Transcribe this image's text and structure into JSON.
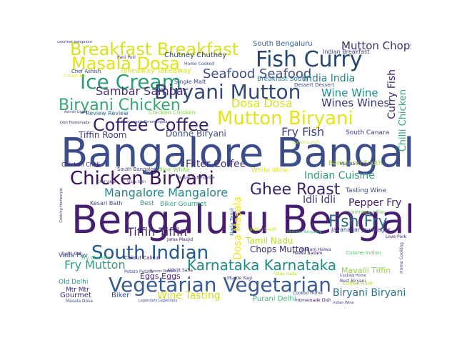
{
  "wordcloud": {
    "words": [
      {
        "text": "Bangalore Bangalore",
        "color": "#3b4d8a",
        "fs": 56
      },
      {
        "text": "Bengaluru Bengaluru",
        "color": "#481f70",
        "fs": 54
      },
      {
        "text": "Breakfast Breakfast",
        "color": "#d6e11f",
        "fs": 24
      },
      {
        "text": "Fish Curry",
        "color": "#26466f",
        "fs": 30
      },
      {
        "text": "Masala Dosa",
        "color": "#e1e116",
        "fs": 24
      },
      {
        "text": "Ice Cream",
        "color": "#2a9d72",
        "fs": 28
      },
      {
        "text": "Biryani Mutton",
        "color": "#30497a",
        "fs": 28
      },
      {
        "text": "Seafood Seafood",
        "color": "#3d4c88",
        "fs": 18
      },
      {
        "text": "Biryani Chicken",
        "color": "#34a770",
        "fs": 22
      },
      {
        "text": "Sambar Sambar",
        "color": "#472e79",
        "fs": 16
      },
      {
        "text": "Mutton Biryani",
        "color": "#e3e419",
        "fs": 26
      },
      {
        "text": "Coffee Coffee",
        "color": "#38216c",
        "fs": 24
      },
      {
        "text": "Chicken Biryani",
        "color": "#3c0f58",
        "fs": 26
      },
      {
        "text": "South Indian",
        "color": "#22578c",
        "fs": 26
      },
      {
        "text": "Karnataka Karnataka",
        "color": "#1f8b85",
        "fs": 20
      },
      {
        "text": "Vegetarian Vegetarian",
        "color": "#385b93",
        "fs": 28
      },
      {
        "text": "Fish Fry",
        "color": "#2e6c8c",
        "fs": 22
      },
      {
        "text": "Ghee Roast",
        "color": "#39256d",
        "fs": 22
      },
      {
        "text": "Mutton Chops",
        "color": "#39336b",
        "fs": 15
      },
      {
        "text": "India India",
        "color": "#2b7f89",
        "fs": 14
      },
      {
        "text": "Wine Wine",
        "color": "#1e8c8a",
        "fs": 15
      },
      {
        "text": "Wines Wines",
        "color": "#35387c",
        "fs": 15
      },
      {
        "text": "Dosa Dosa",
        "color": "#d2e01e",
        "fs": 16
      },
      {
        "text": "Fry Fish",
        "color": "#3e3f7f",
        "fs": 16
      },
      {
        "text": "Mangalore Mangalore",
        "color": "#25858a",
        "fs": 16
      },
      {
        "text": "Tiffin Tiffin",
        "color": "#472a76",
        "fs": 16
      },
      {
        "text": "Fry Mutton",
        "color": "#2f9a7e",
        "fs": 16
      },
      {
        "text": "Filter Coffee",
        "color": "#462f7a",
        "fs": 14
      },
      {
        "text": "Indian Cuisine",
        "color": "#2f9b77",
        "fs": 14
      },
      {
        "text": "Idli Idli",
        "color": "#3f3a7f",
        "fs": 14
      },
      {
        "text": "Pepper Fry",
        "color": "#47206e",
        "fs": 14
      },
      {
        "text": "Tamil Nadu",
        "color": "#b3dd2d",
        "fs": 12
      },
      {
        "text": "Chops Mutton",
        "color": "#3e2a72",
        "fs": 12
      },
      {
        "text": "Wine Tasting",
        "color": "#d0dd1f",
        "fs": 14
      },
      {
        "text": "Biryani Biryani",
        "color": "#27728c",
        "fs": 14
      },
      {
        "text": "Donne Biryani",
        "color": "#3e4b88",
        "fs": 12
      },
      {
        "text": "Tiffin Room",
        "color": "#3e3a80",
        "fs": 12
      },
      {
        "text": "Mavalli Tiffin",
        "color": "#8ed345",
        "fs": 11
      },
      {
        "text": "South Bengaluru",
        "color": "#355f8d",
        "fs": 10
      },
      {
        "text": "Chutney Chutney",
        "color": "#2a3c77",
        "fs": 10
      },
      {
        "text": "Takeaway Takeaway",
        "color": "#d7e21b",
        "fs": 10
      },
      {
        "text": "Breakfast South",
        "color": "#27808e",
        "fs": 9
      },
      {
        "text": "Curry Fish",
        "color": "#3b1a6a",
        "fs": 14
      },
      {
        "text": "Chilli Chicken",
        "color": "#33a978",
        "fs": 13
      },
      {
        "text": "Dosa Masala",
        "color": "#f0e620",
        "fs": 14
      },
      {
        "text": "Gourmet",
        "color": "#3c2c75",
        "fs": 10
      },
      {
        "text": "Biker",
        "color": "#3a4f8e",
        "fs": 10
      },
      {
        "text": "Purani Delhi",
        "color": "#3db87b",
        "fs": 10
      },
      {
        "text": "Eggs Eggs",
        "color": "#46237d",
        "fs": 11
      },
      {
        "text": "Old Delhi",
        "color": "#2b8f8b",
        "fs": 9
      },
      {
        "text": "Mtr Mtr",
        "color": "#482475",
        "fs": 9
      },
      {
        "text": "Vada Pav",
        "color": "#3b5a8f",
        "fs": 9
      },
      {
        "text": "Best",
        "color": "#3f8e8b",
        "fs": 9
      },
      {
        "text": "Biker Gourmet",
        "color": "#2fa480",
        "fs": 9
      },
      {
        "text": "Bengaluru South",
        "color": "#a0d838",
        "fs": 9
      },
      {
        "text": "Tasting Wine",
        "color": "#3d4a88",
        "fs": 9
      },
      {
        "text": "South Canara",
        "color": "#3f3d80",
        "fs": 9
      },
      {
        "text": "Wine White",
        "color": "#7dd250",
        "fs": 8
      },
      {
        "text": "White Wine",
        "color": "#e5e418",
        "fs": 9
      },
      {
        "text": "Single Malt",
        "color": "#3d4d88",
        "fs": 8
      },
      {
        "text": "Dessert Dessert",
        "color": "#3e4684",
        "fs": 7
      },
      {
        "text": "Indian Breakfast",
        "color": "#3d3c82",
        "fs": 8
      },
      {
        "text": "Review Review",
        "color": "#26658d",
        "fs": 8
      },
      {
        "text": "Chicken Chicken",
        "color": "#87d248",
        "fs": 8
      },
      {
        "text": "Chicken Chilli",
        "color": "#3b1a6a",
        "fs": 8
      },
      {
        "text": "Kesari Bath",
        "color": "#3e4b88",
        "fs": 8
      },
      {
        "text": "Jayanagar Jayanagar",
        "color": "#3b4586",
        "fs": 8
      },
      {
        "text": "Cuisine Indian",
        "color": "#52c06b",
        "fs": 7
      },
      {
        "text": "Calicut Calicut",
        "color": "#3b1a6a",
        "fs": 7
      },
      {
        "text": "Valentines Day",
        "color": "#70cc57",
        "fs": 7
      },
      {
        "text": "Coffee Filter",
        "color": "#b6de2c",
        "fs": 7
      },
      {
        "text": "Chef Ashish",
        "color": "#2b3d7c",
        "fs": 7
      },
      {
        "text": "Pani Puri",
        "color": "#3b2c72",
        "fs": 6
      },
      {
        "text": "Home Cooked",
        "color": "#3a4988",
        "fs": 6
      },
      {
        "text": "Cream Ice",
        "color": "#e0e31c",
        "fs": 6
      },
      {
        "text": "Delhi Old",
        "color": "#3c1a6c",
        "fs": 6
      },
      {
        "text": "South Bangalore",
        "color": "#3b3d80",
        "fs": 7
      },
      {
        "text": "Fry Chicken",
        "color": "#3fb97c",
        "fs": 7
      },
      {
        "text": "Highway Bangalore",
        "color": "#47c27a",
        "fs": 5
      },
      {
        "text": "Halwa Badam",
        "color": "#3b1a6a",
        "fs": 6
      },
      {
        "text": "Badam Halwa",
        "color": "#3b3a80",
        "fs": 6
      },
      {
        "text": "Abhijit Saha",
        "color": "#3b1a6a",
        "fs": 6
      },
      {
        "text": "Mudde Ragi",
        "color": "#3e3f7f",
        "fs": 6
      },
      {
        "text": "Vada Vada",
        "color": "#b3dd2d",
        "fs": 6
      },
      {
        "text": "Cooked Home",
        "color": "#3a4887",
        "fs": 6
      },
      {
        "text": "Homemade Dish",
        "color": "#3b1a6a",
        "fs": 6
      },
      {
        "text": "Indian Wine",
        "color": "#39387f",
        "fs": 5
      },
      {
        "text": "Legendary Legendary",
        "color": "#3c4a8b",
        "fs": 5
      },
      {
        "text": "Masala Dosa",
        "color": "#3f4d89",
        "fs": 6
      },
      {
        "text": "Indian South",
        "color": "#b8de29",
        "fs": 6
      },
      {
        "text": "Jama Masjid",
        "color": "#3b1a6a",
        "fs": 6
      },
      {
        "text": "Mutton Pepper",
        "color": "#3c2a73",
        "fs": 6
      },
      {
        "text": "Best Biryani",
        "color": "#3f3d80",
        "fs": 6
      },
      {
        "text": "Bengaluru Bangalore",
        "color": "#3b3d80",
        "fs": 5
      },
      {
        "text": "Kormangala Koramangala",
        "color": "#3e3a80",
        "fs": 5
      },
      {
        "text": "Chef Vikas",
        "color": "#3b4887",
        "fs": 5
      },
      {
        "text": "Vikas Seth",
        "color": "#3b4887",
        "fs": 5
      },
      {
        "text": "Ashish Uggal",
        "color": "#3b3a80",
        "fs": 5
      },
      {
        "text": "Dish Homemade",
        "color": "#3b2c72",
        "fs": 5
      },
      {
        "text": "Cooking Homestyle",
        "color": "#3b2c72",
        "fs": 5
      },
      {
        "text": "Nadu Tamil",
        "color": "#2c6e8e",
        "fs": 7
      },
      {
        "text": "Love Pork",
        "color": "#3b1a6a",
        "fs": 6
      },
      {
        "text": "Home Cooking",
        "color": "#3c4a88",
        "fs": 6
      },
      {
        "text": "Lunch Lunch",
        "color": "#b5de2b",
        "fs": 6
      },
      {
        "text": "Potato Potato",
        "color": "#3d4c88",
        "fs": 6
      },
      {
        "text": "Rooms Mavalli",
        "color": "#3b3a80",
        "fs": 5
      },
      {
        "text": "Cooking Home",
        "color": "#3b3a80",
        "fs": 5
      },
      {
        "text": "Gourmet Bangalore",
        "color": "#3b3a80",
        "fs": 5
      }
    ]
  }
}
